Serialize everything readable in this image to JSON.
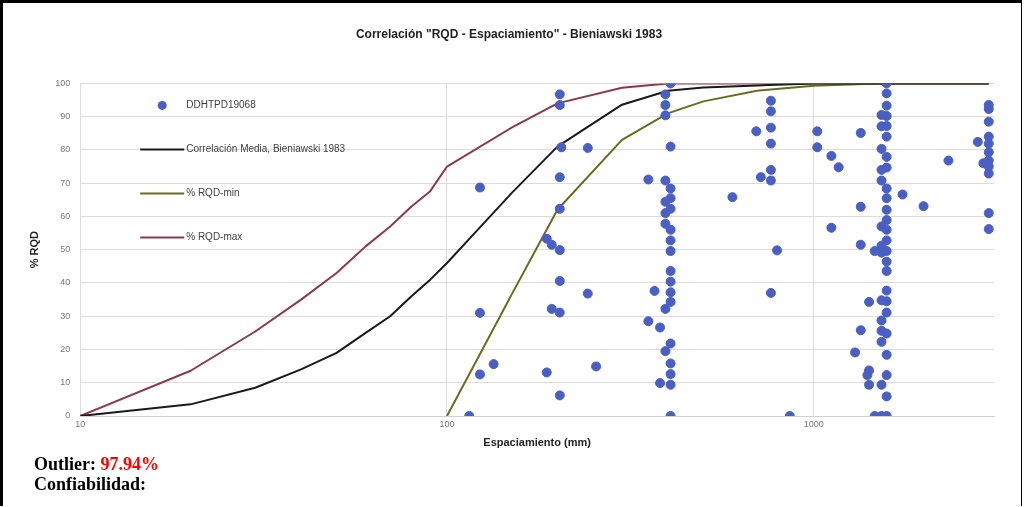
{
  "chart_data": {
    "type": "scatter",
    "title": "Correlación \"RQD - Espaciamiento\" - Bieniawski 1983",
    "xlabel": "Espaciamiento (mm)",
    "ylabel": "% RQD",
    "log": "x",
    "xlim": [
      10,
      3100
    ],
    "xticks": [
      10,
      100,
      1000
    ],
    "ylim": [
      0,
      100
    ],
    "yticks": [
      0,
      10,
      20,
      30,
      40,
      50,
      60,
      70,
      80,
      90,
      100
    ],
    "grid": true,
    "legend": "top left",
    "annotations": [
      "Outlier: 97.94%",
      "Confiabilidad:"
    ],
    "series": [
      {
        "name": "DDHTPD19068",
        "type": "scatter",
        "marker": "circle",
        "color": "#4a5fc4",
        "x": [
          123,
          123,
          123,
          115,
          134,
          203,
          203,
          205,
          203,
          203,
          187,
          193,
          203,
          203,
          193,
          203,
          187,
          203,
          242,
          242,
          255,
          407,
          407,
          407,
          407,
          407,
          407,
          407,
          407,
          407,
          407,
          407,
          407,
          407,
          407,
          407,
          407,
          407,
          394,
          394,
          394,
          394,
          394,
          394,
          394,
          394,
          394,
          381,
          381,
          354,
          354,
          368,
          600,
          764,
          764,
          764,
          764,
          764,
          764,
          764,
          697,
          717,
          794,
          860,
          1022,
          1022,
          1117,
          1117,
          1169,
          1343,
          1343,
          1343,
          1343,
          1296,
          1580,
          1580,
          1580,
          1580,
          1580,
          1580,
          1580,
          1580,
          1580,
          1580,
          1580,
          1580,
          1580,
          1580,
          1580,
          1580,
          1580,
          1580,
          1580,
          1580,
          1580,
          1580,
          1580,
          1580,
          1580,
          1530,
          1530,
          1530,
          1530,
          1530,
          1530,
          1530,
          1530,
          1530,
          1530,
          1530,
          1530,
          1530,
          1530,
          1415,
          1415,
          1415,
          1466,
          1466,
          1400,
          1746,
          1992,
          2329,
          2799,
          3000,
          3000,
          3000,
          3000,
          3000,
          3000,
          3000,
          3000,
          3000,
          3000,
          3000,
          2900
        ],
        "values": [
          68.7,
          31,
          12.5,
          0,
          15.6,
          96.7,
          93.5,
          80.8,
          71.8,
          62.3,
          53.3,
          51.5,
          49.9,
          40.6,
          32.2,
          31.1,
          13.1,
          6.2,
          80.6,
          36.8,
          14.9,
          100,
          81,
          68.4,
          65.5,
          62.3,
          56,
          52.8,
          49.6,
          43.6,
          40.4,
          37.2,
          34.3,
          21.8,
          15.8,
          12.6,
          9.4,
          0,
          96.7,
          93.5,
          90.4,
          70.8,
          64.4,
          61,
          57.8,
          32.2,
          19.5,
          26.6,
          9.9,
          71.1,
          28.5,
          37.6,
          65.8,
          94.8,
          91.6,
          86.7,
          81.9,
          74,
          70.8,
          37,
          85.6,
          71.8,
          49.8,
          0,
          85.6,
          80.8,
          78.2,
          56.6,
          74.8,
          85.1,
          62.9,
          51.5,
          25.8,
          19.1,
          100,
          97,
          93.3,
          90.2,
          87.2,
          84,
          77.9,
          74.7,
          68.4,
          65.5,
          62,
          58.9,
          56,
          52.8,
          49.6,
          46.4,
          43.6,
          37.7,
          34.5,
          31.1,
          24.8,
          18.4,
          12.3,
          5.9,
          0,
          90.5,
          87.1,
          80.3,
          74,
          70.8,
          57,
          51.2,
          49.1,
          34.8,
          28.7,
          25.6,
          22.3,
          9.4,
          0,
          34.3,
          13.7,
          9.4,
          49.6,
          0,
          12.3,
          66.6,
          63.1,
          76.8,
          82.4,
          93.5,
          92.3,
          88.5,
          84,
          81.9,
          79.3,
          76.8,
          75,
          72.9,
          61,
          56.2,
          76
        ]
      },
      {
        "name": "Correlación Media, Bieniawski 1983",
        "type": "line",
        "marker": "none",
        "line_style": "solid",
        "color": "#1a1a1a",
        "x": [
          10,
          20,
          30,
          40,
          50,
          60,
          70,
          80,
          90,
          100,
          150,
          200,
          300,
          400,
          500,
          1000,
          3000
        ],
        "values": [
          0,
          3.5,
          8.5,
          14,
          19,
          25,
          30,
          36,
          41,
          46,
          67,
          81,
          93.6,
          97.8,
          98.8,
          100,
          100
        ]
      },
      {
        "name": "% RQD-min",
        "type": "line",
        "marker": "none",
        "line_style": "solid",
        "color": "#6b6b1e",
        "x": [
          100,
          150,
          200,
          300,
          400,
          500,
          700,
          1000,
          1500,
          3000
        ],
        "values": [
          0,
          36.5,
          62,
          83,
          91,
          94.6,
          97.8,
          99.3,
          100,
          100
        ]
      },
      {
        "name": "% RQD-max",
        "type": "line",
        "marker": "none",
        "line_style": "solid",
        "color": "#8b3a4a",
        "x": [
          10,
          20,
          30,
          40,
          50,
          60,
          70,
          80,
          90,
          100,
          150,
          200,
          300,
          400,
          1000,
          3000
        ],
        "values": [
          0,
          13.6,
          25.4,
          35,
          43,
          51,
          57,
          63,
          67.6,
          75,
          86.7,
          94,
          98.7,
          100,
          100,
          100
        ]
      }
    ]
  }
}
